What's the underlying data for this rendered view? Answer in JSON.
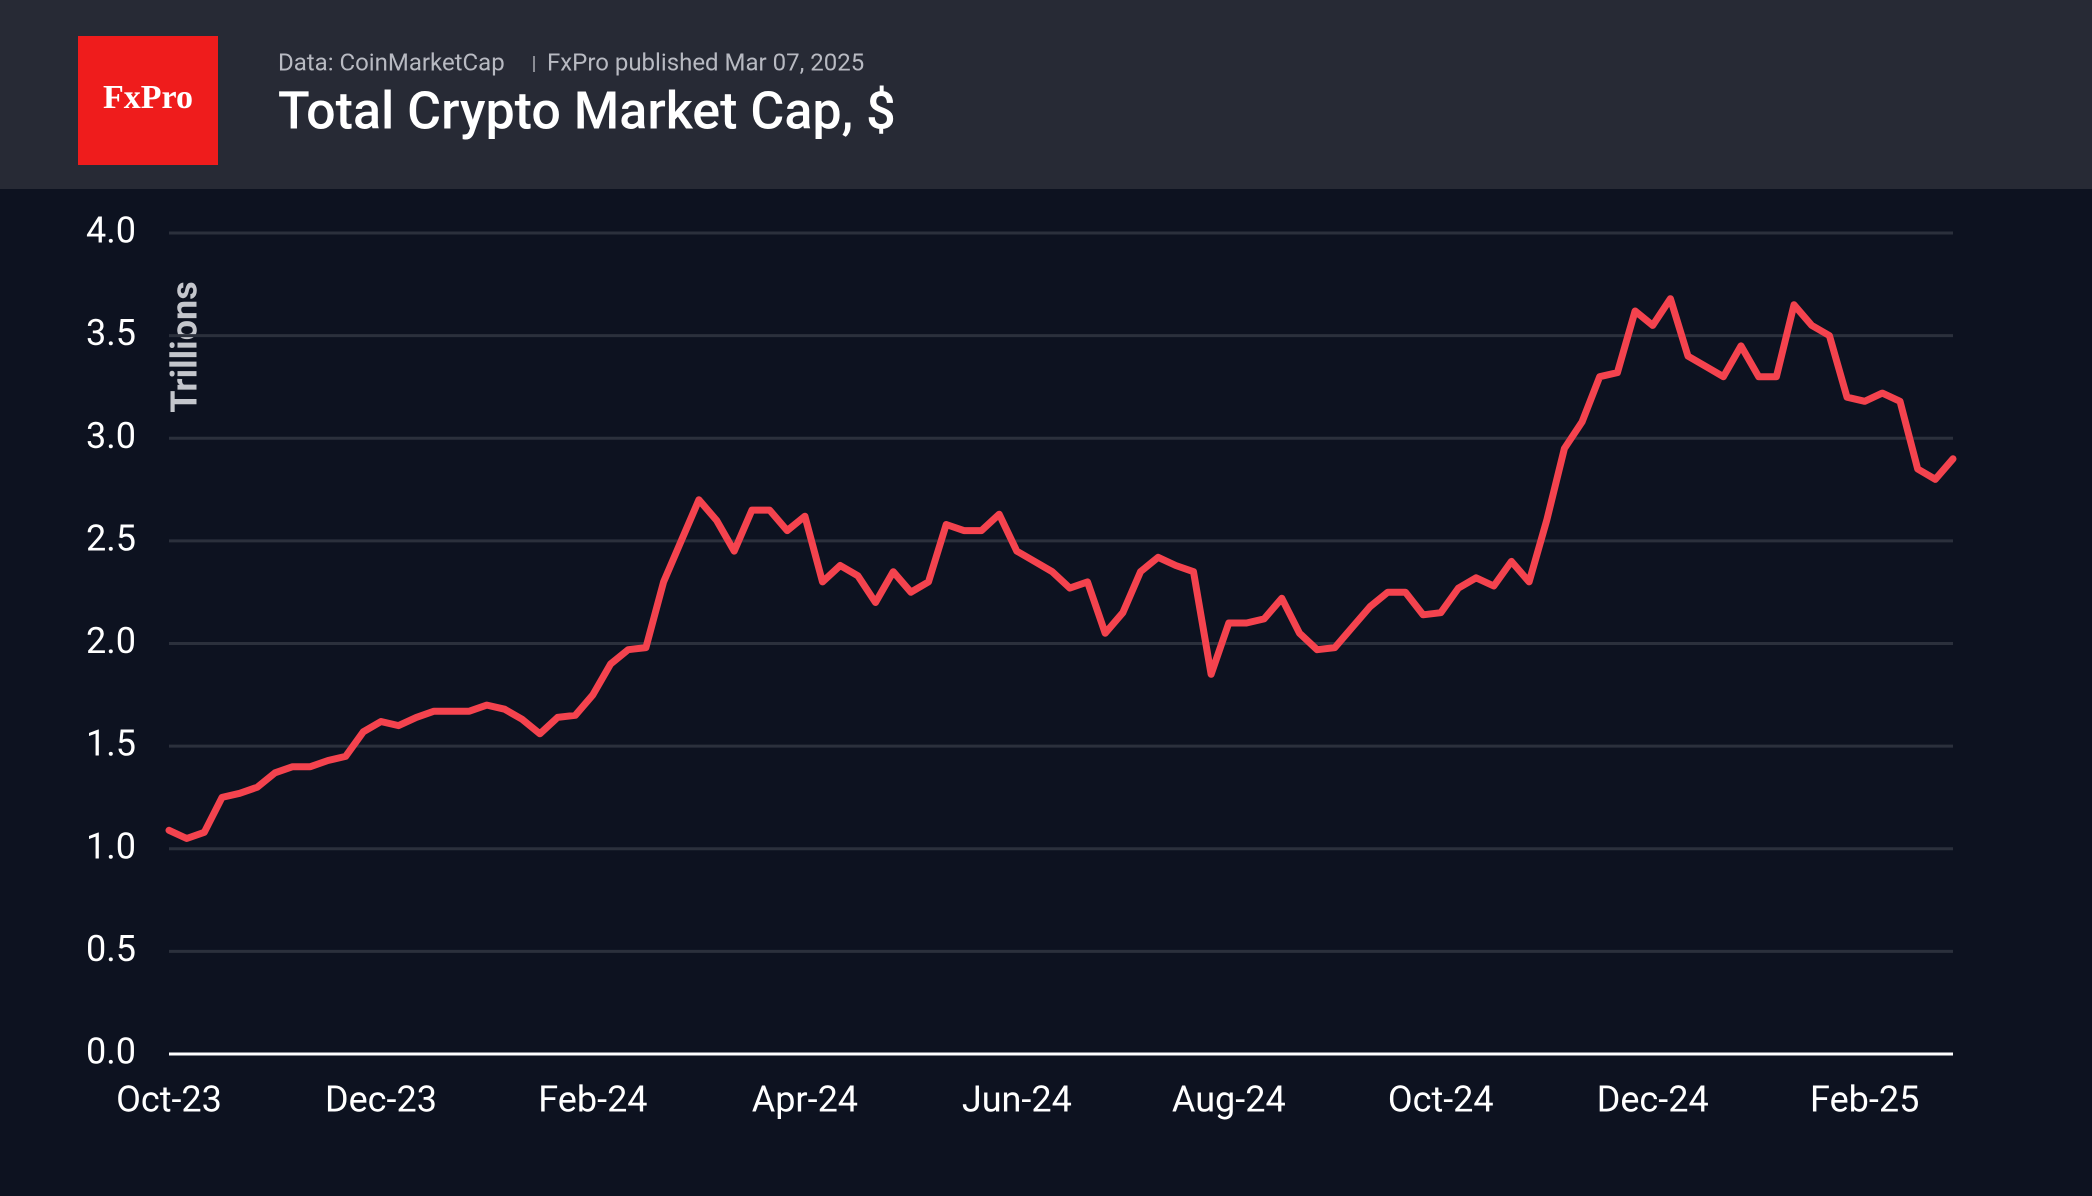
{
  "header": {
    "logo": "FxPro",
    "source": "Data: CoinMarketCap",
    "published": "FxPro published Mar 07, 2025"
  },
  "chart_data": {
    "type": "line",
    "title": "Total Crypto Market Cap, $",
    "y_label": "Trillions",
    "categories": [
      "Oct-23",
      null,
      null,
      null,
      null,
      null,
      null,
      null,
      null,
      null,
      null,
      null,
      "Dec-23",
      null,
      null,
      null,
      null,
      null,
      null,
      null,
      null,
      null,
      null,
      null,
      "Feb-24",
      null,
      null,
      null,
      null,
      null,
      null,
      null,
      null,
      null,
      null,
      null,
      "Apr-24",
      null,
      null,
      null,
      null,
      null,
      null,
      null,
      null,
      null,
      null,
      null,
      "Jun-24",
      null,
      null,
      null,
      null,
      null,
      null,
      null,
      null,
      null,
      null,
      null,
      "Aug-24",
      null,
      null,
      null,
      null,
      null,
      null,
      null,
      null,
      null,
      null,
      null,
      "Oct-24",
      null,
      null,
      null,
      null,
      null,
      null,
      null,
      null,
      null,
      null,
      null,
      "Dec-24",
      null,
      null,
      null,
      null,
      null,
      null,
      null,
      null,
      null,
      null,
      null,
      "Feb-25",
      null,
      null,
      null,
      null,
      null
    ],
    "series": [
      {
        "name": "Total Crypto Market Cap",
        "color": "#f4434e",
        "values": [
          1.09,
          1.05,
          1.08,
          1.25,
          1.27,
          1.3,
          1.37,
          1.4,
          1.4,
          1.43,
          1.45,
          1.57,
          1.62,
          1.6,
          1.64,
          1.67,
          1.67,
          1.67,
          1.7,
          1.68,
          1.63,
          1.56,
          1.64,
          1.65,
          1.75,
          1.9,
          1.97,
          1.98,
          2.3,
          2.5,
          2.7,
          2.6,
          2.45,
          2.65,
          2.65,
          2.55,
          2.62,
          2.3,
          2.38,
          2.33,
          2.2,
          2.35,
          2.25,
          2.3,
          2.58,
          2.55,
          2.55,
          2.63,
          2.45,
          2.4,
          2.35,
          2.27,
          2.3,
          2.05,
          2.15,
          2.35,
          2.42,
          2.38,
          2.35,
          1.85,
          2.1,
          2.1,
          2.12,
          2.22,
          2.05,
          1.97,
          1.98,
          2.08,
          2.18,
          2.25,
          2.25,
          2.14,
          2.15,
          2.27,
          2.32,
          2.28,
          2.4,
          2.3,
          2.6,
          2.95,
          3.08,
          3.3,
          3.32,
          3.62,
          3.55,
          3.68,
          3.4,
          3.35,
          3.3,
          3.45,
          3.3,
          3.3,
          3.65,
          3.55,
          3.5,
          3.2,
          3.18,
          3.22,
          3.18,
          2.85,
          2.8,
          2.9
        ]
      }
    ],
    "ylim": [
      0,
      4
    ],
    "yticks": [
      {
        "value": 0,
        "label": "0.0"
      },
      0.5,
      {
        "value": 1,
        "label": "1.0"
      },
      1.5,
      {
        "value": 2,
        "label": "2.0"
      },
      2.5,
      {
        "value": 3,
        "label": "3.0"
      },
      3.5,
      {
        "value": 4,
        "label": "4.0"
      }
    ],
    "grid": true
  }
}
